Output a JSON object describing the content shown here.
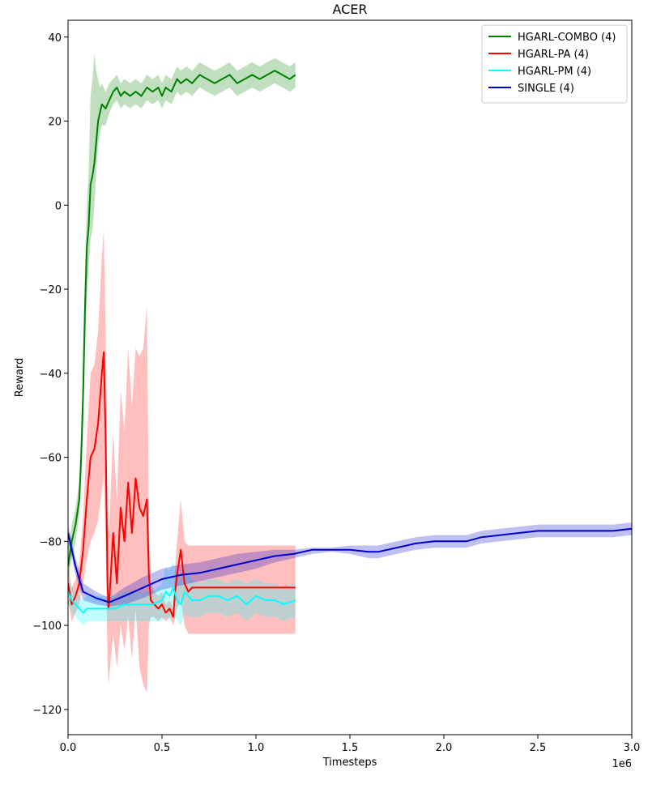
{
  "chart_data": {
    "type": "line",
    "title": "ACER",
    "xlabel": "Timesteps",
    "ylabel": "Reward",
    "x_offset_label": "1e6",
    "xlim": [
      0,
      3.0
    ],
    "ylim": [
      -126,
      44
    ],
    "xticks": [
      0.0,
      0.5,
      1.0,
      1.5,
      2.0,
      2.5,
      3.0
    ],
    "xtick_labels": [
      "0.0",
      "0.5",
      "1.0",
      "1.5",
      "2.0",
      "2.5",
      "3.0"
    ],
    "yticks": [
      -120,
      -100,
      -80,
      -60,
      -40,
      -20,
      0,
      20,
      40
    ],
    "ytick_labels": [
      "−120",
      "−100",
      "−80",
      "−60",
      "−40",
      "−20",
      "0",
      "20",
      "40"
    ],
    "legend_position": "top-right",
    "grid": false,
    "series": [
      {
        "name": "HGARL-COMBO (4)",
        "color": "#008000",
        "x": [
          0.0,
          0.02,
          0.04,
          0.06,
          0.07,
          0.08,
          0.09,
          0.1,
          0.11,
          0.12,
          0.13,
          0.14,
          0.15,
          0.16,
          0.17,
          0.18,
          0.2,
          0.22,
          0.24,
          0.26,
          0.28,
          0.3,
          0.33,
          0.36,
          0.39,
          0.42,
          0.45,
          0.48,
          0.5,
          0.52,
          0.55,
          0.58,
          0.6,
          0.63,
          0.66,
          0.7,
          0.74,
          0.78,
          0.82,
          0.86,
          0.9,
          0.94,
          0.98,
          1.02,
          1.06,
          1.1,
          1.14,
          1.18,
          1.21
        ],
        "y": [
          -86,
          -80,
          -76,
          -70,
          -60,
          -45,
          -25,
          -10,
          -5,
          5,
          7,
          10,
          15,
          20,
          22,
          24,
          23,
          25,
          27,
          28,
          26,
          27,
          26,
          27,
          26,
          28,
          27,
          28,
          26,
          28,
          27,
          30,
          29,
          30,
          29,
          31,
          30,
          29,
          30,
          31,
          29,
          30,
          31,
          30,
          31,
          32,
          31,
          30,
          31
        ],
        "lower": [
          -90,
          -84,
          -80,
          -74,
          -66,
          -52,
          -35,
          -22,
          -15,
          -8,
          -6,
          0,
          8,
          14,
          17,
          19,
          19,
          22,
          24,
          25,
          23,
          24,
          23,
          24,
          23,
          25,
          24,
          25,
          23,
          25,
          24,
          27,
          26,
          27,
          26,
          28,
          27,
          26,
          27,
          28,
          26,
          27,
          28,
          27,
          28,
          29,
          28,
          27,
          28
        ],
        "upper": [
          -82,
          -76,
          -72,
          -66,
          -54,
          -38,
          -15,
          0,
          8,
          26,
          30,
          36,
          32,
          30,
          28,
          29,
          27,
          29,
          30,
          31,
          29,
          30,
          29,
          30,
          29,
          31,
          30,
          31,
          29,
          31,
          30,
          33,
          32,
          33,
          32,
          34,
          33,
          32,
          33,
          34,
          32,
          33,
          34,
          33,
          34,
          35,
          34,
          33,
          34
        ]
      },
      {
        "name": "HGARL-PA (4)",
        "color": "#ff0000",
        "x": [
          0.0,
          0.02,
          0.04,
          0.06,
          0.08,
          0.1,
          0.12,
          0.14,
          0.16,
          0.18,
          0.19,
          0.2,
          0.21,
          0.215,
          0.22,
          0.24,
          0.26,
          0.28,
          0.3,
          0.32,
          0.34,
          0.36,
          0.38,
          0.4,
          0.42,
          0.43,
          0.44,
          0.46,
          0.48,
          0.5,
          0.52,
          0.54,
          0.56,
          0.57,
          0.58,
          0.6,
          0.62,
          0.64,
          0.66,
          0.7,
          0.75,
          0.8,
          0.9,
          1.0,
          1.1,
          1.21
        ],
        "y": [
          -90,
          -95,
          -93,
          -90,
          -82,
          -70,
          -60,
          -58,
          -52,
          -40,
          -35,
          -55,
          -90,
          -96,
          -94,
          -78,
          -90,
          -72,
          -80,
          -66,
          -78,
          -65,
          -72,
          -74,
          -70,
          -88,
          -94,
          -95,
          -96,
          -95,
          -97,
          -96,
          -98,
          -92,
          -88,
          -82,
          -90,
          -92,
          -91,
          -91,
          -91,
          -91,
          -91,
          -91,
          -91,
          -91
        ],
        "lower": [
          -94,
          -99,
          -97,
          -95,
          -90,
          -84,
          -80,
          -78,
          -75,
          -68,
          -64,
          -80,
          -108,
          -114,
          -112,
          -102,
          -110,
          -100,
          -106,
          -98,
          -108,
          -96,
          -110,
          -114,
          -116,
          -100,
          -98,
          -98,
          -99,
          -98,
          -99,
          -98,
          -100,
          -98,
          -96,
          -94,
          -100,
          -102,
          -102,
          -102,
          -102,
          -102,
          -102,
          -102,
          -102,
          -102
        ],
        "upper": [
          -86,
          -91,
          -89,
          -85,
          -74,
          -56,
          -40,
          -38,
          -30,
          -12,
          -6,
          -30,
          -72,
          -78,
          -76,
          -54,
          -70,
          -44,
          -54,
          -34,
          -48,
          -34,
          -36,
          -34,
          -24,
          -76,
          -90,
          -92,
          -93,
          -92,
          -95,
          -94,
          -96,
          -86,
          -80,
          -70,
          -80,
          -81,
          -81,
          -81,
          -81,
          -81,
          -81,
          -81,
          -81,
          -81
        ]
      },
      {
        "name": "HGARL-PM (4)",
        "color": "#00ffff",
        "x": [
          0.0,
          0.02,
          0.04,
          0.06,
          0.08,
          0.1,
          0.15,
          0.2,
          0.25,
          0.3,
          0.35,
          0.4,
          0.45,
          0.5,
          0.52,
          0.54,
          0.56,
          0.58,
          0.6,
          0.62,
          0.64,
          0.66,
          0.7,
          0.75,
          0.8,
          0.85,
          0.9,
          0.95,
          1.0,
          1.05,
          1.1,
          1.15,
          1.21
        ],
        "y": [
          -92,
          -94,
          -95,
          -96,
          -97,
          -96,
          -96,
          -96,
          -96,
          -95,
          -95,
          -95,
          -95,
          -94,
          -92,
          -93,
          -91,
          -94,
          -95,
          -92,
          -93,
          -94,
          -94,
          -93,
          -93,
          -94,
          -93,
          -95,
          -93,
          -94,
          -94,
          -95,
          -94
        ],
        "lower": [
          -95,
          -97,
          -98,
          -99,
          -100,
          -99,
          -99,
          -99,
          -99,
          -99,
          -99,
          -99,
          -99,
          -99,
          -98,
          -99,
          -97,
          -99,
          -100,
          -97,
          -98,
          -98,
          -98,
          -97,
          -97,
          -98,
          -97,
          -99,
          -97,
          -98,
          -98,
          -99,
          -98
        ],
        "upper": [
          -88,
          -91,
          -92,
          -93,
          -94,
          -93,
          -93,
          -93,
          -93,
          -92,
          -92,
          -92,
          -92,
          -90,
          -86,
          -87,
          -85,
          -88,
          -89,
          -87,
          -88,
          -89,
          -90,
          -89,
          -89,
          -90,
          -89,
          -90,
          -89,
          -90,
          -90,
          -91,
          -90
        ],
        "band_color": "#00ffff"
      },
      {
        "name": "SINGLE (4)",
        "color": "#0000cc",
        "x": [
          0.0,
          0.04,
          0.08,
          0.15,
          0.22,
          0.3,
          0.4,
          0.5,
          0.6,
          0.7,
          0.8,
          0.9,
          1.0,
          1.1,
          1.2,
          1.3,
          1.4,
          1.5,
          1.6,
          1.65,
          1.75,
          1.85,
          1.95,
          2.05,
          2.12,
          2.2,
          2.3,
          2.4,
          2.5,
          2.6,
          2.7,
          2.8,
          2.9,
          3.0
        ],
        "y": [
          -78,
          -86,
          -92,
          -93.5,
          -94.5,
          -93,
          -91,
          -89,
          -88,
          -87.5,
          -86.5,
          -85.5,
          -84.5,
          -83.5,
          -83,
          -82,
          -82,
          -82,
          -82.5,
          -82.5,
          -81.5,
          -80.5,
          -80,
          -80,
          -80,
          -79,
          -78.5,
          -78,
          -77.5,
          -77.5,
          -77.5,
          -77.5,
          -77.5,
          -77
        ],
        "lower": [
          -80,
          -88,
          -94,
          -95,
          -95.5,
          -95,
          -93.5,
          -91.5,
          -90.5,
          -89.5,
          -88.5,
          -87.5,
          -86.5,
          -85,
          -84,
          -83,
          -82.5,
          -83,
          -84,
          -84,
          -83,
          -82,
          -81.5,
          -81.5,
          -81.5,
          -80.5,
          -80,
          -79.5,
          -79,
          -79,
          -79,
          -79,
          -79,
          -78.5
        ],
        "upper": [
          -76,
          -84,
          -90,
          -92,
          -93.5,
          -91,
          -88.5,
          -86.5,
          -85.5,
          -85,
          -84,
          -83,
          -82.5,
          -82,
          -82,
          -81.5,
          -81.5,
          -81,
          -81,
          -81,
          -80,
          -79,
          -78.5,
          -78.5,
          -78.5,
          -77.5,
          -77,
          -76.5,
          -76,
          -76,
          -76,
          -76,
          -76,
          -75.5
        ]
      }
    ]
  }
}
